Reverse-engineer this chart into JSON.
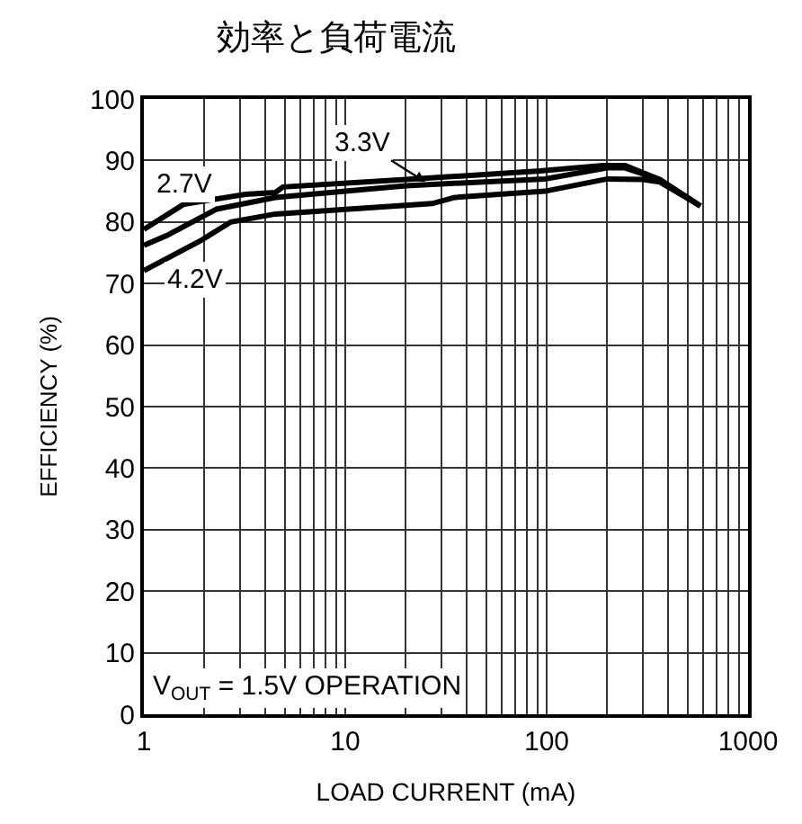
{
  "chart_data": {
    "type": "line",
    "title": "効率と負荷電流",
    "xlabel": "LOAD CURRENT (mA)",
    "ylabel": "EFFICIENCY (%)",
    "log": "x",
    "xlim": [
      1,
      1000
    ],
    "xticks": [
      1,
      10,
      100,
      1000
    ],
    "ylim": [
      0,
      100
    ],
    "yticks": [
      0,
      10,
      20,
      30,
      40,
      50,
      60,
      70,
      80,
      90,
      100
    ],
    "grid": true,
    "marker": "none",
    "line_style": "solid",
    "series": [
      {
        "color": "#000000",
        "x": [
          1,
          1.58,
          3.2,
          4.5,
          4.9,
          20,
          93,
          190,
          245,
          365,
          580
        ],
        "values": [
          78.8,
          82.9,
          84.5,
          84.8,
          85.7,
          86.9,
          88.3,
          89.2,
          89.2,
          86.9,
          82.6
        ]
      },
      {
        "color": "#000000",
        "x": [
          1,
          1.3,
          2.3,
          4.5,
          20,
          98,
          200,
          245,
          365,
          580
        ],
        "values": [
          76.2,
          77.8,
          82.1,
          84,
          85.9,
          87,
          88.8,
          88.8,
          86.9,
          82.6
        ]
      },
      {
        "color": "#000000",
        "x": [
          1,
          1.9,
          2.7,
          4.5,
          27,
          35,
          98,
          200,
          300,
          365,
          580
        ],
        "values": [
          72.1,
          76.9,
          80,
          81.3,
          83,
          84,
          85,
          87,
          86.9,
          86.5,
          82.6
        ]
      }
    ],
    "annotations": [
      {
        "text": "2.7V",
        "x": 1.6,
        "y": 86
      },
      {
        "text": "3.3V",
        "x": 25,
        "y": 86.5
      },
      {
        "text": "4.2V",
        "x": 1.8,
        "y": 70.5
      },
      "V$_{OUT}$ = 1.5V OPERATION"
    ]
  }
}
